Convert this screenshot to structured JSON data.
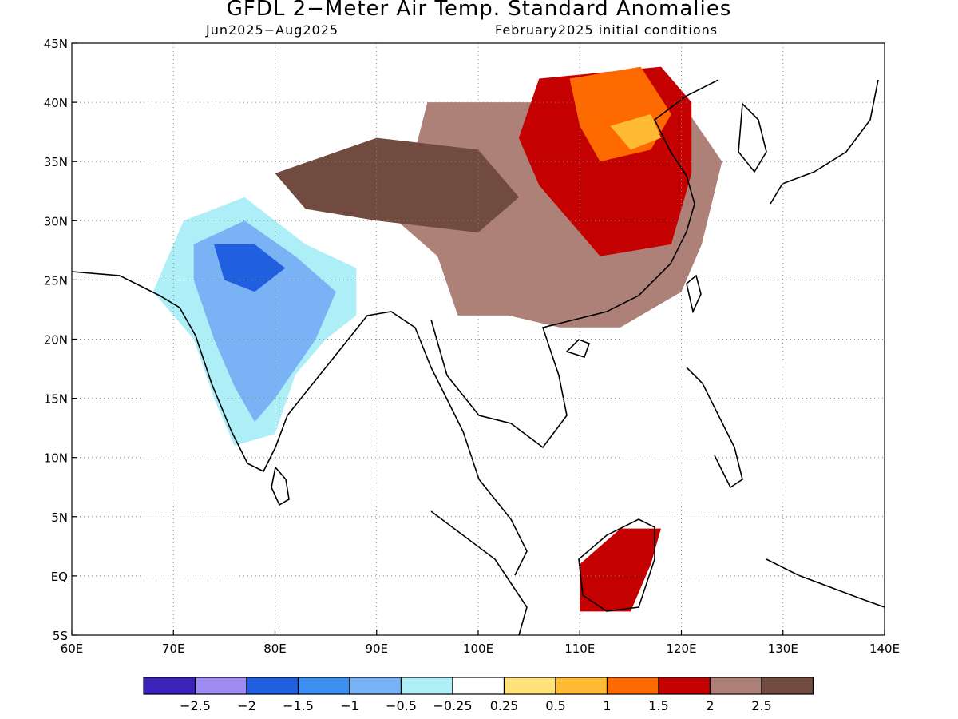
{
  "title": "GFDL 2−Meter Air Temp. Standard Anomalies",
  "subtitle_left": "Jun2025−Aug2025",
  "subtitle_right": "February2025 initial conditions",
  "map": {
    "lon_range": [
      60,
      140
    ],
    "lat_range": [
      -5,
      45
    ],
    "lon_ticks": [
      {
        "v": 60,
        "label": "60E"
      },
      {
        "v": 70,
        "label": "70E"
      },
      {
        "v": 80,
        "label": "80E"
      },
      {
        "v": 90,
        "label": "90E"
      },
      {
        "v": 100,
        "label": "100E"
      },
      {
        "v": 110,
        "label": "110E"
      },
      {
        "v": 120,
        "label": "120E"
      },
      {
        "v": 130,
        "label": "130E"
      },
      {
        "v": 140,
        "label": "140E"
      }
    ],
    "lat_ticks": [
      {
        "v": 45,
        "label": "45N"
      },
      {
        "v": 40,
        "label": "40N"
      },
      {
        "v": 35,
        "label": "35N"
      },
      {
        "v": 30,
        "label": "30N"
      },
      {
        "v": 25,
        "label": "25N"
      },
      {
        "v": 20,
        "label": "20N"
      },
      {
        "v": 15,
        "label": "15N"
      },
      {
        "v": 10,
        "label": "10N"
      },
      {
        "v": 5,
        "label": "5N"
      },
      {
        "v": 0,
        "label": "EQ"
      },
      {
        "v": -5,
        "label": "5S"
      }
    ],
    "gridlines": "dotted"
  },
  "legend": {
    "colors": [
      "#3b22b8",
      "#9f8cf2",
      "#1f5fe0",
      "#3c8fef",
      "#7ab3f5",
      "#aeeef7",
      "#ffffff",
      "#ffe27a",
      "#ffbb33",
      "#ff6a00",
      "#c40000",
      "#ad8078",
      "#714a40"
    ],
    "labels": [
      "−2.5",
      "−2",
      "−1.5",
      "−1",
      "−0.5",
      "−0.25",
      "0.25",
      "0.5",
      "1",
      "1.5",
      "2",
      "2.5"
    ]
  },
  "anomaly_regions": [
    {
      "name": "south-china-warm",
      "value": 2.5,
      "color": "#ad8078",
      "lonlat": [
        [
          95,
          40
        ],
        [
          120,
          40
        ],
        [
          124,
          35
        ],
        [
          122,
          28
        ],
        [
          120,
          24
        ],
        [
          114,
          21
        ],
        [
          108,
          21
        ],
        [
          103,
          22
        ],
        [
          98,
          22
        ],
        [
          96,
          27
        ],
        [
          92,
          30
        ]
      ]
    },
    {
      "name": "china-red-belt",
      "value": 2.0,
      "color": "#c40000",
      "lonlat": [
        [
          106,
          42
        ],
        [
          118,
          43
        ],
        [
          121,
          40
        ],
        [
          121,
          34
        ],
        [
          119,
          28
        ],
        [
          112,
          27
        ],
        [
          106,
          33
        ],
        [
          104,
          37
        ]
      ]
    },
    {
      "name": "north-china-orange",
      "value": 1.5,
      "color": "#ff6a00",
      "lonlat": [
        [
          109,
          42
        ],
        [
          116,
          43
        ],
        [
          119,
          39
        ],
        [
          117,
          36
        ],
        [
          112,
          35
        ],
        [
          110,
          38
        ]
      ]
    },
    {
      "name": "north-china-core",
      "value": 1.0,
      "color": "#ffbb33",
      "lonlat": [
        [
          113,
          38
        ],
        [
          117,
          39
        ],
        [
          118,
          37
        ],
        [
          115,
          36
        ]
      ]
    },
    {
      "name": "india-cool",
      "value": -0.5,
      "color": "#aeeef7",
      "lonlat": [
        [
          71,
          30
        ],
        [
          77,
          32
        ],
        [
          83,
          28
        ],
        [
          88,
          26
        ],
        [
          88,
          22
        ],
        [
          85,
          20
        ],
        [
          82,
          17
        ],
        [
          80,
          12
        ],
        [
          76,
          11
        ],
        [
          74,
          15
        ],
        [
          72,
          20
        ],
        [
          68,
          24
        ]
      ]
    },
    {
      "name": "india-cooler",
      "value": -1.0,
      "color": "#7ab3f5",
      "lonlat": [
        [
          72,
          28
        ],
        [
          77,
          30
        ],
        [
          82,
          27
        ],
        [
          86,
          24
        ],
        [
          84,
          20
        ],
        [
          80,
          15
        ],
        [
          78,
          13
        ],
        [
          76,
          16
        ],
        [
          74,
          20
        ],
        [
          72,
          25
        ]
      ]
    },
    {
      "name": "india-core",
      "value": -1.5,
      "color": "#1f5fe0",
      "lonlat": [
        [
          74,
          28
        ],
        [
          78,
          28
        ],
        [
          81,
          26
        ],
        [
          78,
          24
        ],
        [
          75,
          25
        ]
      ]
    },
    {
      "name": "tibet-dark",
      "value": 2.5,
      "color": "#714a40",
      "lonlat": [
        [
          80,
          34
        ],
        [
          90,
          37
        ],
        [
          100,
          36
        ],
        [
          104,
          32
        ],
        [
          100,
          29
        ],
        [
          90,
          30
        ],
        [
          83,
          31
        ]
      ]
    },
    {
      "name": "borneo-red",
      "value": 2.0,
      "color": "#c40000",
      "lonlat": [
        [
          110,
          1
        ],
        [
          114,
          4
        ],
        [
          118,
          4
        ],
        [
          117,
          1
        ],
        [
          115,
          -3
        ],
        [
          110,
          -3
        ]
      ]
    }
  ]
}
